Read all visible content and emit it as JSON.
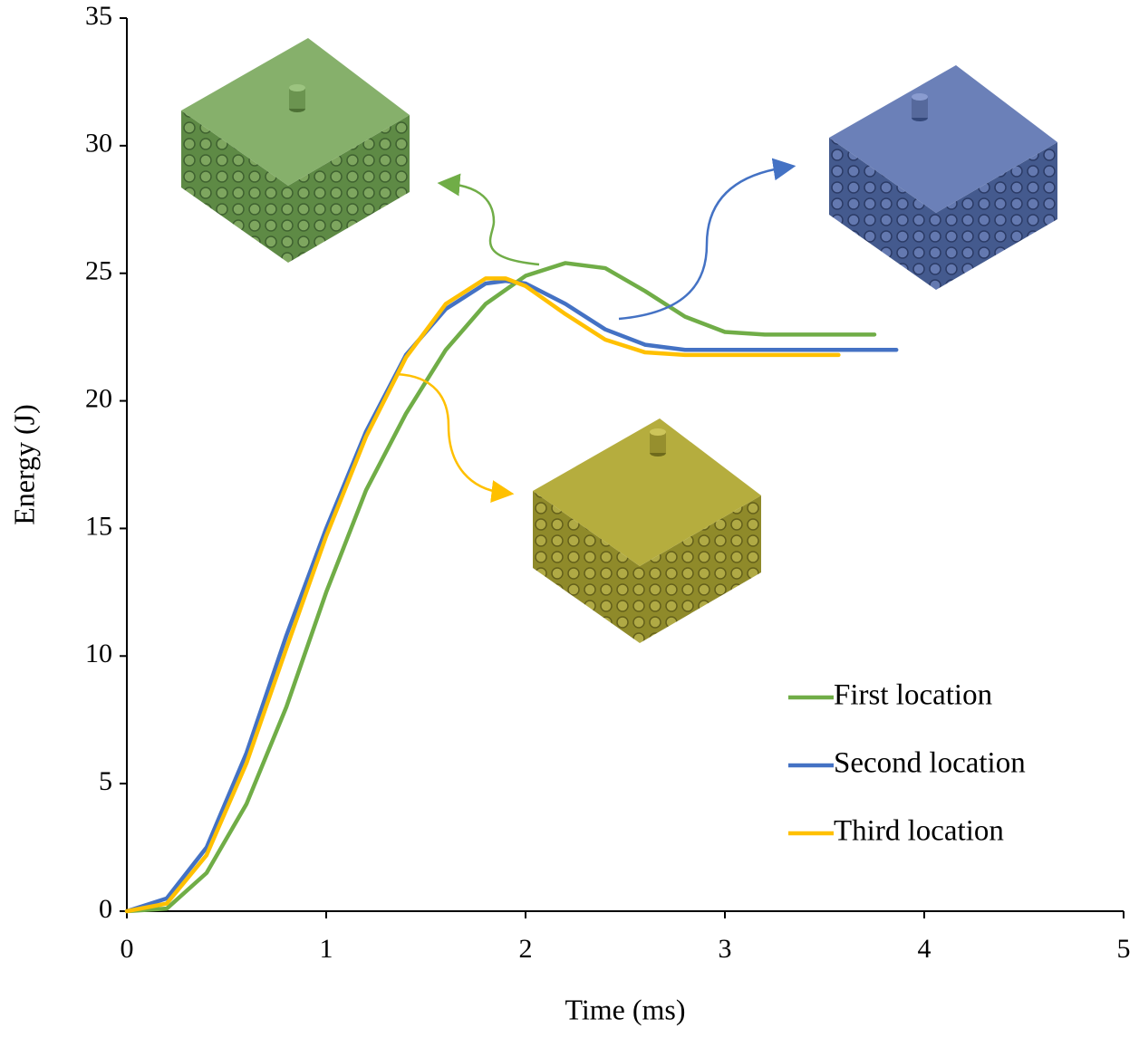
{
  "chart_data": {
    "type": "line",
    "xlabel": "Time (ms)",
    "ylabel": "Energy (J)",
    "xlim": [
      0,
      5
    ],
    "ylim": [
      0,
      35
    ],
    "xticks": [
      0,
      1,
      2,
      3,
      4,
      5
    ],
    "yticks": [
      0,
      5,
      10,
      15,
      20,
      25,
      30,
      35
    ],
    "legend": "lower right",
    "series": [
      {
        "name": "First location",
        "color": "#70ad47",
        "x": [
          0,
          0.2,
          0.4,
          0.6,
          0.8,
          1.0,
          1.2,
          1.4,
          1.6,
          1.8,
          2.0,
          2.2,
          2.4,
          2.6,
          2.8,
          3.0,
          3.2,
          3.75
        ],
        "values": [
          0,
          0.1,
          1.5,
          4.2,
          8,
          12.5,
          16.5,
          19.5,
          22,
          23.8,
          24.9,
          25.4,
          25.2,
          24.3,
          23.3,
          22.7,
          22.6,
          22.6
        ]
      },
      {
        "name": "Second location",
        "color": "#4472c4",
        "x": [
          0,
          0.2,
          0.4,
          0.6,
          0.8,
          1.0,
          1.2,
          1.4,
          1.6,
          1.8,
          1.9,
          2.0,
          2.2,
          2.4,
          2.6,
          2.8,
          3.86
        ],
        "values": [
          0,
          0.5,
          2.5,
          6.2,
          10.8,
          15,
          18.8,
          21.8,
          23.6,
          24.6,
          24.7,
          24.6,
          23.8,
          22.8,
          22.2,
          22.0,
          22.0
        ]
      },
      {
        "name": "Third location",
        "color": "#ffc000",
        "x": [
          0,
          0.2,
          0.4,
          0.6,
          0.8,
          1.0,
          1.2,
          1.4,
          1.6,
          1.8,
          1.9,
          2.0,
          2.2,
          2.4,
          2.6,
          2.8,
          3.57
        ],
        "values": [
          0,
          0.3,
          2.2,
          5.8,
          10.3,
          14.7,
          18.6,
          21.7,
          23.8,
          24.8,
          24.8,
          24.5,
          23.4,
          22.4,
          21.9,
          21.8,
          21.8
        ]
      }
    ]
  }
}
